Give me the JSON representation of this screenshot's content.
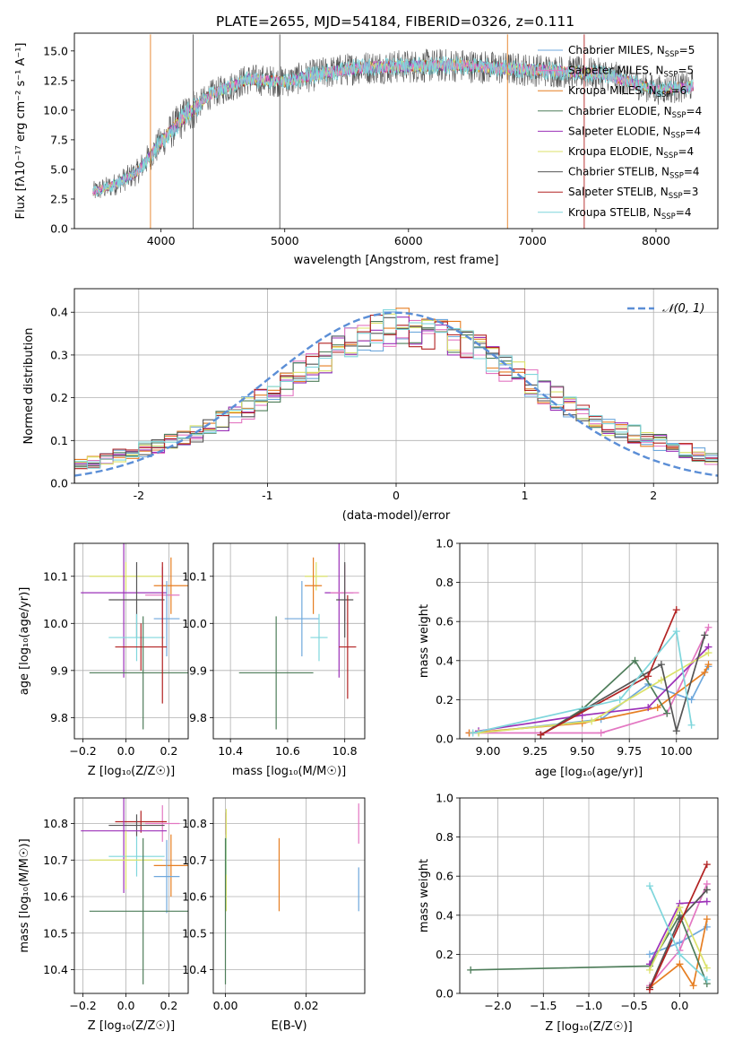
{
  "figure_title": "PLATE=2655, MJD=54184, FIBERID=0326, z=0.111",
  "colors": {
    "Chabrier MILES": "#6fa8dc",
    "Salpeter MILES": "#e377c2",
    "Kroupa MILES": "#e67e22",
    "Chabrier ELODIE": "#4e7d5a",
    "Salpeter ELODIE": "#9b30b8",
    "Kroupa ELODIE": "#dbe26a",
    "Chabrier STELIB": "#555555",
    "Salpeter STELIB": "#b22222",
    "Kroupa STELIB": "#7fd6dc",
    "gauss": "#5b8ed6"
  },
  "chart_data": [
    {
      "id": "spectrum",
      "type": "line",
      "xlabel": "wavelength [Angstrom, rest frame]",
      "ylabel": "Flux [fλ10⁻¹⁷ erg cm⁻² s⁻¹ A⁻¹]",
      "xlim": [
        3300,
        8500
      ],
      "ylim": [
        0,
        16.5
      ],
      "xticks": [
        4000,
        5000,
        6000,
        7000,
        8000
      ],
      "yticks": [
        0.0,
        2.5,
        5.0,
        7.5,
        10.0,
        12.5,
        15.0
      ],
      "grid": false,
      "legend": "top-right",
      "data_range": [
        3450,
        8300
      ],
      "continuum_profile": {
        "x": [
          3450,
          3600,
          3800,
          4000,
          4200,
          4400,
          4700,
          5000,
          5300,
          5600,
          6000,
          6400,
          6800,
          7200,
          7600,
          8000,
          8300
        ],
        "y": [
          3.1,
          3.6,
          4.7,
          7.3,
          9.6,
          11.3,
          12.6,
          12.4,
          13.1,
          13.6,
          13.7,
          13.8,
          13.5,
          13.3,
          13.0,
          11.7,
          12.0
        ]
      },
      "series": [
        {
          "name": "Chabrier MILES, N_SSP=5",
          "label": "Chabrier MILES, N",
          "sub": "SSP",
          "count": "=5",
          "color_key": "Chabrier MILES"
        },
        {
          "name": "Salpeter MILES, N_SSP=5",
          "label": "Salpeter MILES, N",
          "sub": "SSP",
          "count": "=5",
          "color_key": "Salpeter MILES"
        },
        {
          "name": "Kroupa MILES, N_SSP=6",
          "label": "Kroupa MILES, N",
          "sub": "SSP",
          "count": "=6",
          "color_key": "Kroupa MILES"
        },
        {
          "name": "Chabrier ELODIE, N_SSP=4",
          "label": "Chabrier ELODIE, N",
          "sub": "SSP",
          "count": "=4",
          "color_key": "Chabrier ELODIE"
        },
        {
          "name": "Salpeter ELODIE, N_SSP=4",
          "label": "Salpeter ELODIE, N",
          "sub": "SSP",
          "count": "=4",
          "color_key": "Salpeter ELODIE"
        },
        {
          "name": "Kroupa ELODIE, N_SSP=4",
          "label": "Kroupa ELODIE, N",
          "sub": "SSP",
          "count": "=4",
          "color_key": "Kroupa ELODIE"
        },
        {
          "name": "Chabrier STELIB, N_SSP=4",
          "label": "Chabrier STELIB, N",
          "sub": "SSP",
          "count": "=4",
          "color_key": "Chabrier STELIB"
        },
        {
          "name": "Salpeter STELIB, N_SSP=3",
          "label": "Salpeter STELIB, N",
          "sub": "SSP",
          "count": "=3",
          "color_key": "Salpeter STELIB"
        },
        {
          "name": "Kroupa STELIB, N_SSP=4",
          "label": "Kroupa STELIB, N",
          "sub": "SSP",
          "count": "=4",
          "color_key": "Kroupa STELIB"
        }
      ]
    },
    {
      "id": "residuals",
      "type": "histogram",
      "xlabel": "(data-model)/error",
      "ylabel": "Normed distribution",
      "xlim": [
        -2.5,
        2.5
      ],
      "ylim": [
        0,
        0.455
      ],
      "xticks": [
        -2,
        -1,
        0,
        1,
        2
      ],
      "yticks": [
        0.0,
        0.1,
        0.2,
        0.3,
        0.4
      ],
      "grid": true,
      "legend": "top-right",
      "gauss_label": "𝒩(0, 1)",
      "bin_width": 0.1,
      "bin_start": -2.5,
      "envelope": {
        "x": [
          -2.5,
          -2.0,
          -1.5,
          -1.0,
          -0.5,
          0.0,
          0.5,
          1.0,
          1.5,
          2.0,
          2.5
        ],
        "y": [
          0.04,
          0.075,
          0.12,
          0.2,
          0.305,
          0.37,
          0.335,
          0.245,
          0.15,
          0.1,
          0.055
        ]
      },
      "gauss_curve": "normal pdf, mean 0, sigma 1"
    },
    {
      "id": "age-vs-Z",
      "type": "errorbar",
      "xlabel": "Z [log₁₀(Z/Z☉)]",
      "ylabel": "age  [log₁₀(age/yr)]",
      "xlim": [
        -0.24,
        0.29
      ],
      "ylim": [
        9.755,
        10.17
      ],
      "xticks": [
        -0.2,
        0.0,
        0.2
      ],
      "xticklabels": [
        "−0.2",
        "0.0",
        "0.2"
      ],
      "yticks": [
        9.8,
        9.9,
        10.0,
        10.1
      ],
      "grid": true,
      "points": [
        {
          "color_key": "Kroupa ELODIE",
          "x": 0.0,
          "xerr": 0.17,
          "y": 10.1,
          "yerr": 0.03
        },
        {
          "color_key": "Salpeter ELODIE",
          "x": -0.01,
          "xerr": 0.2,
          "y": 10.065,
          "yerr": 0.18
        },
        {
          "color_key": "Kroupa MILES",
          "x": 0.21,
          "xerr": 0.08,
          "y": 10.08,
          "yerr": 0.06
        },
        {
          "color_key": "Salpeter MILES",
          "x": 0.17,
          "xerr": 0.08,
          "y": 10.06,
          "yerr": 0.06
        },
        {
          "color_key": "Chabrier STELIB",
          "x": 0.05,
          "xerr": 0.13,
          "y": 10.05,
          "yerr": 0.08
        },
        {
          "color_key": "Chabrier MILES",
          "x": 0.19,
          "xerr": 0.06,
          "y": 10.01,
          "yerr": 0.08
        },
        {
          "color_key": "Kroupa STELIB",
          "x": 0.05,
          "xerr": 0.13,
          "y": 9.97,
          "yerr": 0.05
        },
        {
          "color_key": "Salpeter STELIB",
          "x": 0.07,
          "xerr": 0.12,
          "y": 9.95,
          "yerr": 0.05
        },
        {
          "color_key": "Chabrier ELODIE",
          "x": 0.08,
          "xerr": 0.25,
          "y": 9.895,
          "yerr": 0.12
        },
        {
          "color_key": "Salpeter STELIB",
          "x": 0.17,
          "xerr": 0.0,
          "y": 9.98,
          "yerr": 0.15
        }
      ]
    },
    {
      "id": "age-vs-mass",
      "type": "errorbar",
      "xlabel": "mass [log₁₀(M/M☉)]",
      "ylabel": "",
      "xlim": [
        10.34,
        10.87
      ],
      "ylim": [
        9.755,
        10.17
      ],
      "xticks": [
        10.4,
        10.6,
        10.8
      ],
      "yticks": [
        9.8,
        9.9,
        10.0,
        10.1
      ],
      "grid": true,
      "points": [
        {
          "color_key": "Kroupa ELODIE",
          "x": 10.7,
          "xerr": 0.04,
          "y": 10.1,
          "yerr": 0.03
        },
        {
          "color_key": "Salpeter ELODIE",
          "x": 10.78,
          "xerr": 0.05,
          "y": 10.065,
          "yerr": 0.18
        },
        {
          "color_key": "Kroupa MILES",
          "x": 10.69,
          "xerr": 0.03,
          "y": 10.08,
          "yerr": 0.06
        },
        {
          "color_key": "Salpeter MILES",
          "x": 10.8,
          "xerr": 0.05,
          "y": 10.065,
          "yerr": 0.06
        },
        {
          "color_key": "Chabrier STELIB",
          "x": 10.8,
          "xerr": 0.03,
          "y": 10.05,
          "yerr": 0.08
        },
        {
          "color_key": "Chabrier MILES",
          "x": 10.65,
          "xerr": 0.06,
          "y": 10.01,
          "yerr": 0.08
        },
        {
          "color_key": "Kroupa STELIB",
          "x": 10.71,
          "xerr": 0.03,
          "y": 9.97,
          "yerr": 0.05
        },
        {
          "color_key": "Salpeter STELIB",
          "x": 10.81,
          "xerr": 0.03,
          "y": 9.95,
          "yerr": 0.11
        },
        {
          "color_key": "Chabrier ELODIE",
          "x": 10.56,
          "xerr": 0.13,
          "y": 9.895,
          "yerr": 0.12
        }
      ]
    },
    {
      "id": "weight-vs-age",
      "type": "line",
      "xlabel": "age  [log₁₀(age/yr)]",
      "ylabel": "mass weight",
      "xlim": [
        8.85,
        10.22
      ],
      "ylim": [
        0,
        1.0
      ],
      "xticks": [
        9.0,
        9.25,
        9.5,
        9.75,
        10.0
      ],
      "xticklabels": [
        "9.00",
        "9.25",
        "9.50",
        "9.75",
        "10.00"
      ],
      "yticks": [
        0.0,
        0.2,
        0.4,
        0.6,
        0.8,
        1.0
      ],
      "grid": true,
      "series": [
        {
          "color_key": "Chabrier MILES",
          "x": [
            8.95,
            9.6,
            9.85,
            10.08,
            10.17
          ],
          "y": [
            0.03,
            0.1,
            0.28,
            0.2,
            0.37
          ]
        },
        {
          "color_key": "Salpeter MILES",
          "x": [
            8.9,
            9.6,
            9.95,
            10.17
          ],
          "y": [
            0.03,
            0.03,
            0.13,
            0.57
          ]
        },
        {
          "color_key": "Kroupa MILES",
          "x": [
            8.9,
            9.5,
            9.9,
            10.15,
            10.17
          ],
          "y": [
            0.03,
            0.08,
            0.16,
            0.34,
            0.38
          ]
        },
        {
          "color_key": "Chabrier ELODIE",
          "x": [
            9.28,
            9.5,
            9.78,
            9.95
          ],
          "y": [
            0.02,
            0.15,
            0.4,
            0.13
          ]
        },
        {
          "color_key": "Salpeter ELODIE",
          "x": [
            8.95,
            9.5,
            9.85,
            10.17
          ],
          "y": [
            0.04,
            0.12,
            0.16,
            0.47
          ]
        },
        {
          "color_key": "Kroupa ELODIE",
          "x": [
            8.95,
            9.55,
            9.92,
            10.17
          ],
          "y": [
            0.03,
            0.09,
            0.3,
            0.44
          ]
        },
        {
          "color_key": "Chabrier STELIB",
          "x": [
            9.28,
            9.92,
            10.0,
            10.15
          ],
          "y": [
            0.02,
            0.38,
            0.04,
            0.53
          ]
        },
        {
          "color_key": "Salpeter STELIB",
          "x": [
            9.28,
            9.85,
            10.0
          ],
          "y": [
            0.02,
            0.32,
            0.66
          ]
        },
        {
          "color_key": "Kroupa STELIB",
          "x": [
            8.92,
            9.7,
            10.0,
            10.08
          ],
          "y": [
            0.03,
            0.2,
            0.55,
            0.07
          ]
        }
      ]
    },
    {
      "id": "mass-vs-Z",
      "type": "errorbar",
      "xlabel": "Z [log₁₀(Z/Z☉)]",
      "ylabel": "mass [log₁₀(M/M☉)]",
      "xlim": [
        -0.24,
        0.29
      ],
      "ylim": [
        10.335,
        10.87
      ],
      "xticks": [
        -0.2,
        0.0,
        0.2
      ],
      "xticklabels": [
        "−0.2",
        "0.0",
        "0.2"
      ],
      "yticks": [
        10.4,
        10.5,
        10.6,
        10.7,
        10.8
      ],
      "grid": true,
      "points": [
        {
          "color_key": "Salpeter MILES",
          "x": 0.17,
          "xerr": 0.08,
          "y": 10.8,
          "yerr": 0.05
        },
        {
          "color_key": "Salpeter STELIB",
          "x": 0.07,
          "xerr": 0.12,
          "y": 10.805,
          "yerr": 0.03
        },
        {
          "color_key": "Chabrier STELIB",
          "x": 0.05,
          "xerr": 0.13,
          "y": 10.795,
          "yerr": 0.03
        },
        {
          "color_key": "Salpeter ELODIE",
          "x": -0.01,
          "xerr": 0.2,
          "y": 10.78,
          "yerr": 0.17
        },
        {
          "color_key": "Kroupa STELIB",
          "x": 0.05,
          "xerr": 0.13,
          "y": 10.71,
          "yerr": 0.055
        },
        {
          "color_key": "Kroupa ELODIE",
          "x": 0.0,
          "xerr": 0.17,
          "y": 10.7,
          "yerr": 0.08
        },
        {
          "color_key": "Kroupa MILES",
          "x": 0.21,
          "xerr": 0.08,
          "y": 10.685,
          "yerr": 0.085
        },
        {
          "color_key": "Chabrier MILES",
          "x": 0.19,
          "xerr": 0.06,
          "y": 10.655,
          "yerr": 0.1
        },
        {
          "color_key": "Chabrier ELODIE",
          "x": 0.08,
          "xerr": 0.25,
          "y": 10.56,
          "yerr": 0.2
        }
      ]
    },
    {
      "id": "mass-vs-EBV",
      "type": "errorbar",
      "xlabel": "E(B-V)",
      "ylabel": "",
      "xlim": [
        -0.003,
        0.0345
      ],
      "ylim": [
        10.335,
        10.87
      ],
      "xticks": [
        0.0,
        0.02
      ],
      "xticklabels": [
        "0.00",
        "0.02"
      ],
      "yticks": [
        10.4,
        10.5,
        10.6,
        10.7,
        10.8
      ],
      "grid": true,
      "points": [
        {
          "color_key": "Salpeter STELIB",
          "x": 0.0002,
          "xerr": 0,
          "y": 10.8,
          "yerr": 0.03
        },
        {
          "color_key": "Kroupa ELODIE",
          "x": 0.0002,
          "xerr": 0,
          "y": 10.7,
          "yerr": 0.14
        },
        {
          "color_key": "Kroupa STELIB",
          "x": 0.0001,
          "xerr": 0,
          "y": 10.71,
          "yerr": 0.05
        },
        {
          "color_key": "Chabrier ELODIE",
          "x": 0.0,
          "xerr": 0,
          "y": 10.56,
          "yerr": 0.2
        },
        {
          "color_key": "Kroupa MILES",
          "x": 0.0133,
          "xerr": 0,
          "y": 10.66,
          "yerr": 0.1
        },
        {
          "color_key": "Salpeter MILES",
          "x": 0.033,
          "xerr": 0,
          "y": 10.8,
          "yerr": 0.055
        },
        {
          "color_key": "Chabrier MILES",
          "x": 0.033,
          "xerr": 0,
          "y": 10.62,
          "yerr": 0.06
        }
      ]
    },
    {
      "id": "weight-vs-Z",
      "type": "line",
      "xlabel": "Z [log₁₀(Z/Z☉)]",
      "ylabel": "mass weight",
      "xlim": [
        -2.42,
        0.42
      ],
      "ylim": [
        0,
        1.0
      ],
      "xticks": [
        -2.0,
        -1.5,
        -1.0,
        -0.5,
        0.0
      ],
      "xticklabels": [
        "−2.0",
        "−1.5",
        "−1.0",
        "−0.5",
        "0.0"
      ],
      "yticks": [
        0.0,
        0.2,
        0.4,
        0.6,
        0.8,
        1.0
      ],
      "grid": true,
      "series": [
        {
          "color_key": "Chabrier MILES",
          "x": [
            -0.33,
            0.0,
            0.3
          ],
          "y": [
            0.2,
            0.26,
            0.34
          ]
        },
        {
          "color_key": "Salpeter MILES",
          "x": [
            -0.33,
            0.0,
            0.3
          ],
          "y": [
            0.04,
            0.22,
            0.56
          ]
        },
        {
          "color_key": "Kroupa MILES",
          "x": [
            -0.33,
            0.0,
            0.15,
            0.3
          ],
          "y": [
            0.03,
            0.15,
            0.04,
            0.38
          ]
        },
        {
          "color_key": "Chabrier ELODIE",
          "x": [
            -2.3,
            -0.33,
            0.0,
            0.3
          ],
          "y": [
            0.12,
            0.14,
            0.4,
            0.05
          ]
        },
        {
          "color_key": "Salpeter ELODIE",
          "x": [
            -0.33,
            0.0,
            0.3
          ],
          "y": [
            0.15,
            0.46,
            0.47
          ]
        },
        {
          "color_key": "Kroupa ELODIE",
          "x": [
            -0.33,
            0.0,
            0.3
          ],
          "y": [
            0.12,
            0.44,
            0.13
          ]
        },
        {
          "color_key": "Chabrier STELIB",
          "x": [
            -0.33,
            0.0,
            0.3
          ],
          "y": [
            0.03,
            0.38,
            0.53
          ]
        },
        {
          "color_key": "Salpeter STELIB",
          "x": [
            -0.33,
            0.3
          ],
          "y": [
            0.02,
            0.66
          ]
        },
        {
          "color_key": "Kroupa STELIB",
          "x": [
            -0.33,
            0.0,
            0.3
          ],
          "y": [
            0.55,
            0.2,
            0.07
          ]
        }
      ]
    }
  ]
}
